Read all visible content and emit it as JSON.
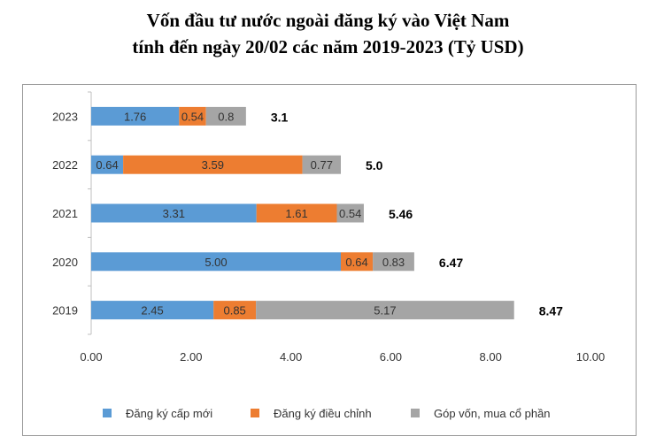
{
  "title_line1": "Vốn đầu tư nước ngoài đăng ký vào Việt Nam",
  "title_line2": "tính đến ngày 20/02 các năm 2019-2023 (Tỷ USD)",
  "chart_data": {
    "type": "bar",
    "orientation": "horizontal",
    "stacked": true,
    "categories": [
      "2019",
      "2020",
      "2021",
      "2022",
      "2023"
    ],
    "series": [
      {
        "name": "Đăng ký cấp mới",
        "color": "#5b9bd5",
        "values": [
          2.45,
          5.0,
          3.31,
          0.64,
          1.76
        ],
        "labels": [
          "2.45",
          "5.00",
          "3.31",
          "0.64",
          "1.76"
        ]
      },
      {
        "name": "Đăng ký điều chỉnh",
        "color": "#ed7d31",
        "values": [
          0.85,
          0.64,
          1.61,
          3.59,
          0.54
        ],
        "labels": [
          "0.85",
          "0.64",
          "1.61",
          "3.59",
          "0.54"
        ]
      },
      {
        "name": "Góp vốn, mua cổ phần",
        "color": "#a5a5a5",
        "values": [
          5.17,
          0.83,
          0.54,
          0.77,
          0.8
        ],
        "labels": [
          "5.17",
          "0.83",
          "0.54",
          "0.77",
          "0.8"
        ]
      }
    ],
    "totals": [
      "8.47",
      "6.47",
      "5.46",
      "5.0",
      "3.1"
    ],
    "xlim": [
      0,
      10
    ],
    "xticks": [
      "0.00",
      "2.00",
      "4.00",
      "6.00",
      "8.00",
      "10.00"
    ],
    "grid": false,
    "legend_position": "bottom"
  }
}
